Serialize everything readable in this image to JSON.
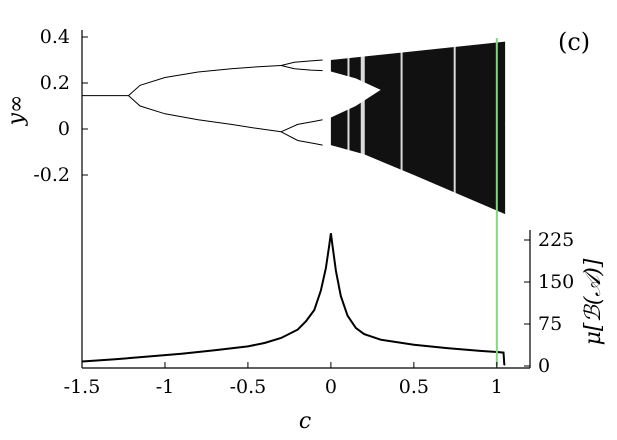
{
  "chart_data": {
    "type": "line",
    "panel_label": "(c)",
    "xlabel": "c",
    "ylabel_left": "y∞",
    "ylabel_right": "μ[ℬ(𝒜)]",
    "xlim": [
      -1.5,
      1.2
    ],
    "x_ticks": [
      "-1.5",
      "-1",
      "-0.5",
      "0",
      "0.5",
      "1"
    ],
    "x_tick_values": [
      -1.5,
      -1,
      -0.5,
      0,
      0.5,
      1
    ],
    "bifurcation": {
      "ylim": [
        -0.3,
        0.42
      ],
      "y_ticks": [
        "0.4",
        "0.2",
        "0",
        "-0.2"
      ],
      "y_tick_values": [
        0.4,
        0.2,
        0,
        -0.2
      ],
      "fixed_point": [
        [
          -1.5,
          0.145
        ],
        [
          -1.4,
          0.145
        ],
        [
          -1.3,
          0.145
        ],
        [
          -1.22,
          0.145
        ]
      ],
      "period2_upper": [
        [
          -1.22,
          0.145
        ],
        [
          -1.15,
          0.19
        ],
        [
          -1.0,
          0.224
        ],
        [
          -0.8,
          0.248
        ],
        [
          -0.6,
          0.262
        ],
        [
          -0.45,
          0.27
        ],
        [
          -0.3,
          0.276
        ]
      ],
      "period2_lower": [
        [
          -1.22,
          0.145
        ],
        [
          -1.15,
          0.1
        ],
        [
          -1.0,
          0.066
        ],
        [
          -0.8,
          0.04
        ],
        [
          -0.6,
          0.02
        ],
        [
          -0.45,
          0.003
        ],
        [
          -0.3,
          -0.012
        ]
      ],
      "period4": [
        [
          [
            -0.3,
            0.276
          ],
          [
            -0.22,
            0.29
          ],
          [
            -0.12,
            0.296
          ],
          [
            -0.05,
            0.3
          ]
        ],
        [
          [
            -0.3,
            0.276
          ],
          [
            -0.22,
            0.262
          ],
          [
            -0.12,
            0.256
          ],
          [
            -0.05,
            0.254
          ]
        ],
        [
          [
            -0.3,
            -0.012
          ],
          [
            -0.2,
            0.02
          ],
          [
            -0.1,
            0.033
          ],
          [
            -0.05,
            0.04
          ]
        ],
        [
          [
            -0.3,
            -0.012
          ],
          [
            -0.2,
            -0.05
          ],
          [
            -0.1,
            -0.063
          ],
          [
            -0.05,
            -0.07
          ]
        ]
      ],
      "chaotic_region": {
        "x_start": 0.0,
        "x_end": 1.05,
        "y_top_end": 0.38,
        "y_bottom_end": -0.37
      }
    },
    "measure": {
      "ylim": [
        0,
        250
      ],
      "y_ticks": [
        "225",
        "150",
        "75",
        "0"
      ],
      "y_tick_values": [
        225,
        150,
        75,
        0
      ],
      "points": [
        [
          -1.5,
          8
        ],
        [
          -1.3,
          12
        ],
        [
          -1.1,
          17
        ],
        [
          -0.9,
          22
        ],
        [
          -0.7,
          28
        ],
        [
          -0.5,
          35
        ],
        [
          -0.4,
          41
        ],
        [
          -0.3,
          50
        ],
        [
          -0.2,
          65
        ],
        [
          -0.15,
          80
        ],
        [
          -0.1,
          100
        ],
        [
          -0.06,
          135
        ],
        [
          -0.03,
          175
        ],
        [
          -0.01,
          215
        ],
        [
          0.0,
          237
        ],
        [
          0.01,
          215
        ],
        [
          0.03,
          170
        ],
        [
          0.06,
          125
        ],
        [
          0.1,
          90
        ],
        [
          0.15,
          68
        ],
        [
          0.2,
          57
        ],
        [
          0.3,
          47
        ],
        [
          0.5,
          38
        ],
        [
          0.7,
          32
        ],
        [
          0.9,
          27
        ],
        [
          1.0,
          25
        ],
        [
          1.04,
          24
        ],
        [
          1.045,
          3
        ],
        [
          1.05,
          2
        ]
      ]
    },
    "marker_line": {
      "x": 1.0,
      "color": "#7fd97f"
    }
  }
}
